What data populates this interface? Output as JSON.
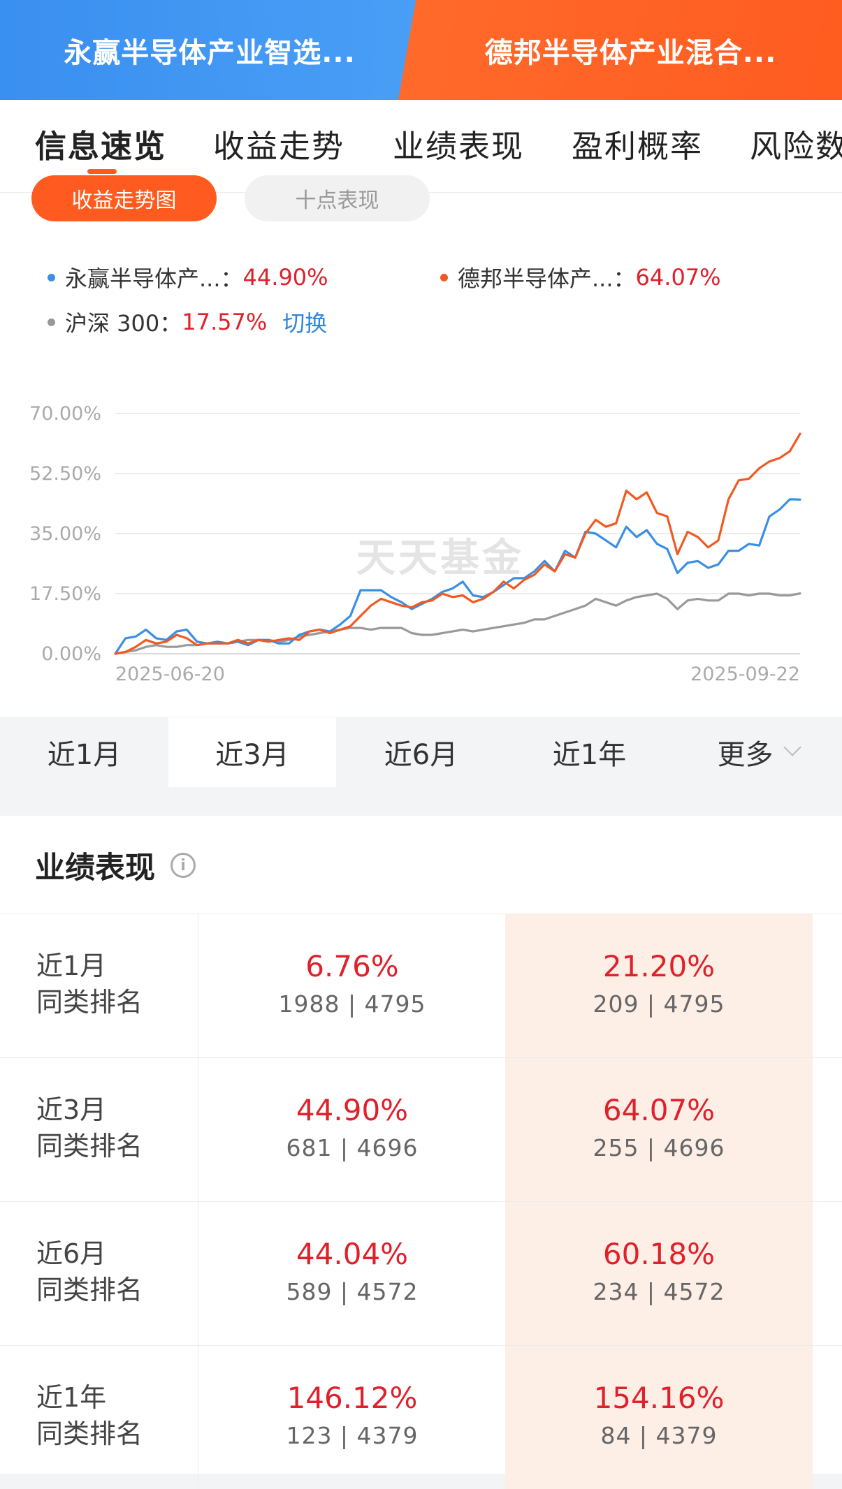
{
  "fund_header": {
    "left_label": "永赢半导体产业智选...",
    "right_label": "德邦半导体产业混合..."
  },
  "section_tabs": [
    "信息速览",
    "收益走势",
    "业绩表现",
    "盈利概率",
    "风险数"
  ],
  "chart_toggle": {
    "active": "收益走势图",
    "inactive": "十点表现"
  },
  "legend": {
    "fund_a": {
      "name": "永赢半导体产...",
      "value": "44.90%",
      "color": "#3a8fe4"
    },
    "fund_b": {
      "name": "德邦半导体产...",
      "value": "64.07%",
      "color": "#f05a22"
    },
    "index": {
      "name": "沪深 300",
      "value": "17.57%",
      "color": "#999999"
    },
    "switch_label": "切换"
  },
  "watermark": "天天基金",
  "chart_data": {
    "type": "line",
    "y_ticks": [
      "70.00%",
      "52.50%",
      "35.00%",
      "17.50%",
      "0.00%"
    ],
    "ylim": [
      0,
      70
    ],
    "x_labels": [
      "2025-06-20",
      "2025-09-22"
    ],
    "series": [
      {
        "name": "永赢半导体产...",
        "color": "#3a8fe4",
        "values": [
          0,
          4.5,
          5,
          7,
          4.5,
          4,
          6.5,
          7,
          3.5,
          3,
          3.5,
          3,
          3.5,
          2.5,
          4,
          4,
          3,
          3,
          5.5,
          6.5,
          7,
          6.5,
          8.5,
          11,
          18.5,
          18.5,
          18.5,
          16.5,
          15,
          13,
          14.5,
          16,
          18,
          19,
          21,
          17,
          16.5,
          18,
          20,
          22,
          22,
          24,
          27,
          24,
          30,
          28,
          35.5,
          35,
          33,
          31,
          37,
          34,
          36,
          32,
          30.5,
          23.5,
          26.5,
          27,
          25,
          26,
          30,
          30,
          32,
          31.5,
          40,
          42,
          45,
          44.9
        ]
      },
      {
        "name": "德邦半导体产...",
        "color": "#f05a22",
        "values": [
          0,
          0.5,
          2,
          4,
          3,
          3.5,
          5.5,
          4.5,
          2.5,
          3,
          3,
          3,
          4,
          3,
          4,
          3.5,
          4,
          4.5,
          4,
          6.5,
          7,
          6,
          7,
          8,
          11,
          14,
          16,
          15,
          14,
          13.5,
          15,
          15.5,
          17.5,
          16.5,
          17,
          15,
          16,
          18,
          21,
          19,
          21.5,
          23,
          26,
          24,
          29,
          28,
          35,
          39,
          37,
          38,
          47.5,
          45,
          47,
          41,
          40,
          29,
          35.5,
          34,
          31,
          33,
          45,
          50.5,
          51,
          54,
          56,
          57,
          59,
          64.07
        ]
      },
      {
        "name": "沪深 300",
        "color": "#999999",
        "values": [
          0,
          0.5,
          1,
          2,
          2.5,
          2,
          2,
          2.5,
          2.5,
          3,
          3,
          3,
          3.5,
          4,
          4,
          4,
          3.5,
          4,
          5,
          5.5,
          6,
          6.5,
          7,
          7.5,
          7.5,
          7,
          7.5,
          7.5,
          7.5,
          6,
          5.5,
          5.5,
          6,
          6.5,
          7,
          6.5,
          7,
          7.5,
          8,
          8.5,
          9,
          10,
          10,
          11,
          12,
          13,
          14,
          16,
          15,
          14,
          15.5,
          16.5,
          17,
          17.5,
          16,
          13,
          15.5,
          16,
          15.5,
          15.5,
          17.5,
          17.5,
          17,
          17.5,
          17.5,
          17,
          17,
          17.57
        ]
      }
    ]
  },
  "period_tabs": [
    "近1月",
    "近3月",
    "近6月",
    "近1年",
    "更多"
  ],
  "period_active": "近3月",
  "performance": {
    "title": "业绩表现",
    "rows": [
      {
        "label_line1": "近1月",
        "label_line2": "同类排名",
        "a_pct": "6.76%",
        "a_rank": "1988 | 4795",
        "b_pct": "21.20%",
        "b_rank": "209 | 4795"
      },
      {
        "label_line1": "近3月",
        "label_line2": "同类排名",
        "a_pct": "44.90%",
        "a_rank": "681 | 4696",
        "b_pct": "64.07%",
        "b_rank": "255 | 4696"
      },
      {
        "label_line1": "近6月",
        "label_line2": "同类排名",
        "a_pct": "44.04%",
        "a_rank": "589 | 4572",
        "b_pct": "60.18%",
        "b_rank": "234 | 4572"
      },
      {
        "label_line1": "近1年",
        "label_line2": "同类排名",
        "a_pct": "146.12%",
        "a_rank": "123 | 4379",
        "b_pct": "154.16%",
        "b_rank": "84 | 4379"
      }
    ]
  }
}
